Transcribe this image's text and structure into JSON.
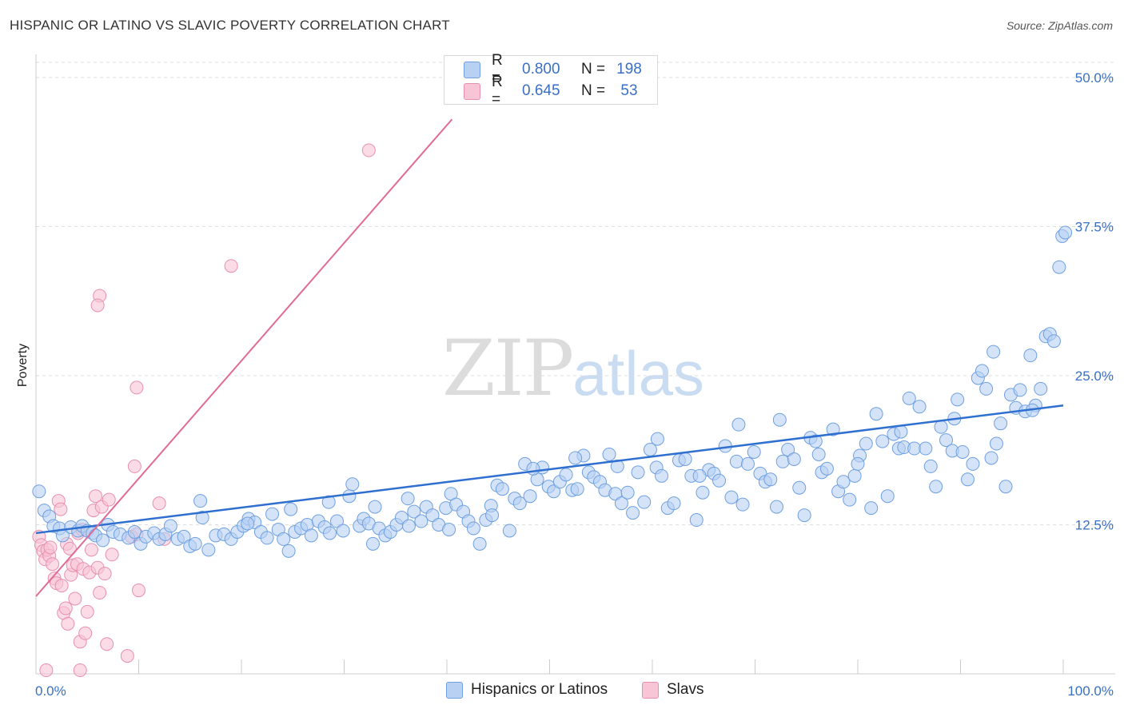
{
  "title": "HISPANIC OR LATINO VS SLAVIC POVERTY CORRELATION CHART",
  "source": "Source: ZipAtlas.com",
  "watermark": {
    "zip": "ZIP",
    "atlas": "atlas"
  },
  "legend": {
    "blue": {
      "r_label": "R =",
      "r_value": "0.800",
      "n_label": "N =",
      "n_value": "198"
    },
    "pink": {
      "r_label": "R =",
      "r_value": "0.645",
      "n_label": "N =",
      "n_value": "53"
    }
  },
  "bottom_legend": {
    "blue": "Hispanics or Latinos",
    "pink": "Slavs"
  },
  "colors": {
    "blue_fill": "#b8d1f3",
    "blue_stroke": "#6fa0e0",
    "blue_line": "#2f6fd0",
    "pink_fill": "#f8c5d6",
    "pink_stroke": "#e98fae",
    "pink_line": "#e26a96",
    "axis_text": "#3a6fc4"
  },
  "chart_data": {
    "type": "scatter",
    "title": "HISPANIC OR LATINO VS SLAVIC POVERTY CORRELATION CHART",
    "xlabel": "",
    "ylabel": "Poverty",
    "xlim": [
      0,
      100
    ],
    "ylim": [
      0,
      50
    ],
    "x_tick_labels": [
      "0.0%",
      "100.0%"
    ],
    "y_ticks": [
      12.5,
      25.0,
      37.5,
      50.0
    ],
    "y_tick_labels": [
      "12.5%",
      "25.0%",
      "37.5%",
      "50.0%"
    ],
    "grid": true,
    "legend_position": "top-center",
    "series": [
      {
        "name": "Hispanics or Latinos",
        "r": 0.8,
        "n": 198,
        "trend": {
          "x": [
            0,
            100
          ],
          "y": [
            11.8,
            22.5
          ]
        },
        "points": [
          [
            0.3,
            15.3
          ],
          [
            0.8,
            13.7
          ],
          [
            1.3,
            13.2
          ],
          [
            1.7,
            12.4
          ],
          [
            2.3,
            12.2
          ],
          [
            2.6,
            11.6
          ],
          [
            3.4,
            12.3
          ],
          [
            4.1,
            12.0
          ],
          [
            4.5,
            12.4
          ],
          [
            5.0,
            12.0
          ],
          [
            5.5,
            11.8
          ],
          [
            5.8,
            11.6
          ],
          [
            6.5,
            11.2
          ],
          [
            7.0,
            12.5
          ],
          [
            7.5,
            11.9
          ],
          [
            8.2,
            11.7
          ],
          [
            9.0,
            11.4
          ],
          [
            9.6,
            11.9
          ],
          [
            10.2,
            10.9
          ],
          [
            10.7,
            11.5
          ],
          [
            11.5,
            11.8
          ],
          [
            12.0,
            11.3
          ],
          [
            12.6,
            11.7
          ],
          [
            13.1,
            12.4
          ],
          [
            13.8,
            11.3
          ],
          [
            14.4,
            11.5
          ],
          [
            15.0,
            10.7
          ],
          [
            15.5,
            10.9
          ],
          [
            16.2,
            13.1
          ],
          [
            16.8,
            10.4
          ],
          [
            17.5,
            11.6
          ],
          [
            18.3,
            11.7
          ],
          [
            19.0,
            11.3
          ],
          [
            19.6,
            11.9
          ],
          [
            20.2,
            12.4
          ],
          [
            20.7,
            13.0
          ],
          [
            21.3,
            12.7
          ],
          [
            21.9,
            11.9
          ],
          [
            22.5,
            11.4
          ],
          [
            23.0,
            13.4
          ],
          [
            23.6,
            12.1
          ],
          [
            24.1,
            11.3
          ],
          [
            24.6,
            10.3
          ],
          [
            25.2,
            11.9
          ],
          [
            25.8,
            12.2
          ],
          [
            26.4,
            12.5
          ],
          [
            26.8,
            11.6
          ],
          [
            27.5,
            12.8
          ],
          [
            28.1,
            12.3
          ],
          [
            28.6,
            11.8
          ],
          [
            29.3,
            12.8
          ],
          [
            29.9,
            12.0
          ],
          [
            30.5,
            14.9
          ],
          [
            30.8,
            15.9
          ],
          [
            31.5,
            12.4
          ],
          [
            31.9,
            13.0
          ],
          [
            32.4,
            12.6
          ],
          [
            32.8,
            10.9
          ],
          [
            33.4,
            12.2
          ],
          [
            34.0,
            11.6
          ],
          [
            34.5,
            11.9
          ],
          [
            35.1,
            12.5
          ],
          [
            35.6,
            13.1
          ],
          [
            36.3,
            12.4
          ],
          [
            36.8,
            13.6
          ],
          [
            37.5,
            12.8
          ],
          [
            38.0,
            14.0
          ],
          [
            38.6,
            13.3
          ],
          [
            39.2,
            12.5
          ],
          [
            39.9,
            13.9
          ],
          [
            40.4,
            15.1
          ],
          [
            40.9,
            14.2
          ],
          [
            41.6,
            13.6
          ],
          [
            42.1,
            12.8
          ],
          [
            42.6,
            12.2
          ],
          [
            43.2,
            10.9
          ],
          [
            43.8,
            12.9
          ],
          [
            44.3,
            14.1
          ],
          [
            44.9,
            15.8
          ],
          [
            45.4,
            15.5
          ],
          [
            46.1,
            12.0
          ],
          [
            46.6,
            14.7
          ],
          [
            47.1,
            14.3
          ],
          [
            47.6,
            17.6
          ],
          [
            48.1,
            14.9
          ],
          [
            48.8,
            16.3
          ],
          [
            49.3,
            17.3
          ],
          [
            49.9,
            15.7
          ],
          [
            50.4,
            15.3
          ],
          [
            51.0,
            16.1
          ],
          [
            51.6,
            16.7
          ],
          [
            52.2,
            15.4
          ],
          [
            52.7,
            15.5
          ],
          [
            53.3,
            18.3
          ],
          [
            53.8,
            16.9
          ],
          [
            54.3,
            16.5
          ],
          [
            54.9,
            16.1
          ],
          [
            55.4,
            15.4
          ],
          [
            55.8,
            18.4
          ],
          [
            56.4,
            15.1
          ],
          [
            57.0,
            14.3
          ],
          [
            57.6,
            15.2
          ],
          [
            58.1,
            13.5
          ],
          [
            58.6,
            16.9
          ],
          [
            59.2,
            14.4
          ],
          [
            59.8,
            18.8
          ],
          [
            60.4,
            17.3
          ],
          [
            60.9,
            16.6
          ],
          [
            61.5,
            13.9
          ],
          [
            62.1,
            14.3
          ],
          [
            62.6,
            17.9
          ],
          [
            63.2,
            18.0
          ],
          [
            63.8,
            16.6
          ],
          [
            64.3,
            12.9
          ],
          [
            64.9,
            15.2
          ],
          [
            65.5,
            17.1
          ],
          [
            66.0,
            16.8
          ],
          [
            66.5,
            16.2
          ],
          [
            67.1,
            19.1
          ],
          [
            67.7,
            14.8
          ],
          [
            68.2,
            17.8
          ],
          [
            68.8,
            14.2
          ],
          [
            69.3,
            17.6
          ],
          [
            69.9,
            18.6
          ],
          [
            70.5,
            16.8
          ],
          [
            71.0,
            16.1
          ],
          [
            71.5,
            16.3
          ],
          [
            72.1,
            14.0
          ],
          [
            72.7,
            17.8
          ],
          [
            73.2,
            18.8
          ],
          [
            73.8,
            18.0
          ],
          [
            74.3,
            15.6
          ],
          [
            74.8,
            13.3
          ],
          [
            75.4,
            19.8
          ],
          [
            75.9,
            19.5
          ],
          [
            76.5,
            16.9
          ],
          [
            77.0,
            17.2
          ],
          [
            77.6,
            20.5
          ],
          [
            78.1,
            15.3
          ],
          [
            78.6,
            16.1
          ],
          [
            79.2,
            14.6
          ],
          [
            79.7,
            16.6
          ],
          [
            80.2,
            18.3
          ],
          [
            80.8,
            19.3
          ],
          [
            81.3,
            13.9
          ],
          [
            81.8,
            21.8
          ],
          [
            82.4,
            19.5
          ],
          [
            82.9,
            14.9
          ],
          [
            83.5,
            20.1
          ],
          [
            84.0,
            18.9
          ],
          [
            84.5,
            19.0
          ],
          [
            85.0,
            23.1
          ],
          [
            85.5,
            18.9
          ],
          [
            86.0,
            22.4
          ],
          [
            86.6,
            18.9
          ],
          [
            87.1,
            17.4
          ],
          [
            87.6,
            15.7
          ],
          [
            88.1,
            20.7
          ],
          [
            88.6,
            19.6
          ],
          [
            89.2,
            18.7
          ],
          [
            89.7,
            23.0
          ],
          [
            90.2,
            18.6
          ],
          [
            90.7,
            16.3
          ],
          [
            91.2,
            17.6
          ],
          [
            91.7,
            24.8
          ],
          [
            92.1,
            25.4
          ],
          [
            92.5,
            23.9
          ],
          [
            93.0,
            18.1
          ],
          [
            93.5,
            19.3
          ],
          [
            93.9,
            21.0
          ],
          [
            94.4,
            15.7
          ],
          [
            94.9,
            23.4
          ],
          [
            95.4,
            22.3
          ],
          [
            95.8,
            23.8
          ],
          [
            96.3,
            22.0
          ],
          [
            96.8,
            26.7
          ],
          [
            97.3,
            22.5
          ],
          [
            97.8,
            23.9
          ],
          [
            98.3,
            28.3
          ],
          [
            98.7,
            28.5
          ],
          [
            99.1,
            27.9
          ],
          [
            99.6,
            34.1
          ],
          [
            99.9,
            36.7
          ],
          [
            100.2,
            37.0
          ],
          [
            97.0,
            22.1
          ],
          [
            93.2,
            27.0
          ],
          [
            89.4,
            21.4
          ],
          [
            84.2,
            20.3
          ],
          [
            80.0,
            17.6
          ],
          [
            76.2,
            18.4
          ],
          [
            72.4,
            21.3
          ],
          [
            68.4,
            20.9
          ],
          [
            64.6,
            16.6
          ],
          [
            60.5,
            19.7
          ],
          [
            56.6,
            17.4
          ],
          [
            52.5,
            18.1
          ],
          [
            48.4,
            17.2
          ],
          [
            44.4,
            13.3
          ],
          [
            40.2,
            12.1
          ],
          [
            36.2,
            14.7
          ],
          [
            33.0,
            14.0
          ],
          [
            28.5,
            14.4
          ],
          [
            24.8,
            13.8
          ],
          [
            20.6,
            12.6
          ],
          [
            16.0,
            14.5
          ]
        ]
      },
      {
        "name": "Slavs",
        "r": 0.645,
        "n": 53,
        "trend": {
          "x": [
            0,
            40.5
          ],
          "y": [
            6.5,
            46.5
          ]
        },
        "points": [
          [
            0.3,
            11.5
          ],
          [
            0.5,
            10.8
          ],
          [
            0.7,
            10.3
          ],
          [
            0.9,
            9.6
          ],
          [
            1.1,
            10.4
          ],
          [
            1.3,
            9.9
          ],
          [
            1.4,
            10.6
          ],
          [
            1.6,
            9.2
          ],
          [
            1.8,
            8.0
          ],
          [
            2.0,
            7.6
          ],
          [
            2.2,
            14.5
          ],
          [
            2.4,
            13.8
          ],
          [
            2.5,
            7.4
          ],
          [
            2.7,
            5.1
          ],
          [
            2.9,
            5.5
          ],
          [
            3.0,
            10.9
          ],
          [
            3.1,
            4.2
          ],
          [
            3.3,
            10.5
          ],
          [
            3.4,
            8.3
          ],
          [
            3.6,
            9.1
          ],
          [
            3.8,
            6.3
          ],
          [
            4.0,
            9.2
          ],
          [
            4.1,
            11.8
          ],
          [
            4.3,
            2.7
          ],
          [
            4.5,
            12.1
          ],
          [
            4.6,
            8.8
          ],
          [
            4.8,
            3.4
          ],
          [
            5.0,
            5.2
          ],
          [
            5.2,
            8.5
          ],
          [
            5.4,
            10.4
          ],
          [
            5.6,
            13.7
          ],
          [
            5.8,
            14.9
          ],
          [
            6.0,
            8.9
          ],
          [
            6.2,
            6.8
          ],
          [
            6.4,
            14.0
          ],
          [
            6.7,
            8.4
          ],
          [
            6.9,
            2.5
          ],
          [
            7.1,
            14.6
          ],
          [
            7.4,
            10.0
          ],
          [
            8.9,
            1.5
          ],
          [
            9.3,
            11.5
          ],
          [
            9.8,
            24.0
          ],
          [
            9.6,
            17.4
          ],
          [
            10.0,
            7.0
          ],
          [
            12.0,
            14.3
          ],
          [
            12.5,
            11.3
          ],
          [
            6.2,
            31.7
          ],
          [
            6.0,
            30.9
          ],
          [
            19.0,
            34.2
          ],
          [
            32.4,
            43.9
          ],
          [
            1.0,
            0.3
          ],
          [
            4.3,
            0.3
          ],
          [
            9.8,
            11.7
          ]
        ]
      }
    ]
  }
}
